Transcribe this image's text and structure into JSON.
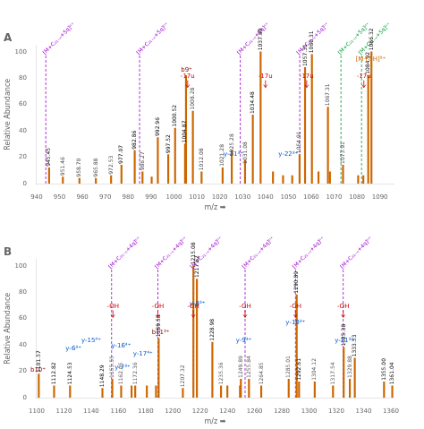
{
  "chart_data": [
    {
      "type": "bar",
      "title": "A",
      "x_label": "m/z ➡",
      "y_label": "Relative Abundance",
      "color": "#cc6600",
      "grid": false,
      "x": [
        945.45,
        951.46,
        958.7,
        965.88,
        972.53,
        977.07,
        982.86,
        986.27,
        990.27,
        992.96,
        997.52,
        1000.52,
        1004.87,
        1005.28,
        1008.28,
        1012.08,
        1021.28,
        1025.28,
        1031.08,
        1034.48,
        1037.89,
        1043.29,
        1047.69,
        1051.7,
        1054.91,
        1057.31,
        1060.31,
        1067.31,
        1063.18,
        1068.19,
        1073.91,
        1080.52,
        1082.78,
        1084.92,
        1086.32
      ],
      "values": [
        12,
        5,
        4,
        4,
        6,
        14,
        25,
        9,
        5,
        35,
        22,
        42,
        30,
        82,
        55,
        9,
        12,
        25,
        18,
        52,
        100,
        9,
        6,
        6,
        22,
        88,
        98,
        58,
        9,
        9,
        14,
        6,
        6,
        82,
        100
      ],
      "xlim": [
        940,
        1096
      ],
      "xticks": [
        940,
        950,
        960,
        970,
        980,
        990,
        1000,
        1010,
        1020,
        1030,
        1040,
        1050,
        1060,
        1070,
        1080,
        1090
      ],
      "ylim": [
        0,
        105
      ],
      "yticks": [
        0,
        20,
        40,
        60,
        80,
        100
      ],
      "peak_labels": [
        {
          "text": "945.45",
          "x": 945.45,
          "y": 13,
          "color": "#000000"
        },
        {
          "text": "977.07",
          "x": 977.07,
          "y": 15,
          "color": "#000000"
        },
        {
          "text": "982.86",
          "x": 982.86,
          "y": 26,
          "color": "#000000"
        },
        {
          "text": "992.96",
          "x": 992.96,
          "y": 36,
          "color": "#000000"
        },
        {
          "text": "997.52",
          "x": 997.52,
          "y": 23,
          "color": "#000000"
        },
        {
          "text": "1000.52",
          "x": 1000.52,
          "y": 43,
          "color": "#000000"
        },
        {
          "text": "1004.87",
          "x": 1004.87,
          "y": 31,
          "color": "#000000"
        },
        {
          "text": "1034.48",
          "x": 1034.48,
          "y": 53,
          "color": "#000000"
        },
        {
          "text": "1037.89",
          "x": 1037.89,
          "y": 101,
          "color": "#000000"
        },
        {
          "text": "1057.31",
          "x": 1057.31,
          "y": 89,
          "color": "#000000"
        },
        {
          "text": "1060.31",
          "x": 1060.31,
          "y": 99,
          "color": "#000000"
        },
        {
          "text": "1084.92",
          "x": 1084.92,
          "y": 83,
          "color": "#000000"
        },
        {
          "text": "1086.32",
          "x": 1086.32,
          "y": 101,
          "color": "#000000"
        },
        {
          "text": "951.46",
          "x": 951.46,
          "y": 6,
          "color": "#444444"
        },
        {
          "text": "958.70",
          "x": 958.7,
          "y": 5,
          "color": "#444444"
        },
        {
          "text": "965.88",
          "x": 965.88,
          "y": 5,
          "color": "#444444"
        },
        {
          "text": "972.53",
          "x": 972.53,
          "y": 7,
          "color": "#444444"
        },
        {
          "text": "986.27",
          "x": 986.27,
          "y": 10,
          "color": "#444444"
        },
        {
          "text": "1025.28",
          "x": 1025.28,
          "y": 21,
          "color": "#444444"
        },
        {
          "text": "1031.08",
          "x": 1031.08,
          "y": 15,
          "color": "#444444"
        },
        {
          "text": "1021.28",
          "x": 1021.28,
          "y": 13,
          "color": "#444444"
        },
        {
          "text": "1012.08",
          "x": 1012.08,
          "y": 10,
          "color": "#444444"
        },
        {
          "text": "1008.28",
          "x": 1008.28,
          "y": 56,
          "color": "#444444"
        },
        {
          "text": "1054.91",
          "x": 1054.91,
          "y": 23,
          "color": "#444444"
        },
        {
          "text": "1067.31",
          "x": 1067.31,
          "y": 59,
          "color": "#444444"
        },
        {
          "text": "1073.91",
          "x": 1073.91,
          "y": 15,
          "color": "#444444"
        }
      ],
      "markers": [
        {
          "text": "[M+C₂₁₋ₙ+5q]ⁿ⁺",
          "x": 944,
          "y": 97,
          "color": "#9900cc"
        },
        {
          "text": "[M+C₂₁₋ₙ+5q]ⁿ⁺",
          "x": 985,
          "y": 97,
          "color": "#9900cc"
        },
        {
          "text": "[M+C₂₁₋ₙ+5q]ⁿ⁺",
          "x": 1029,
          "y": 97,
          "color": "#9900cc"
        },
        {
          "text": "[M+C₂₁₋ₙ+5q]ⁿ⁺",
          "x": 1055,
          "y": 97,
          "color": "#9900cc"
        },
        {
          "text": "[M+C₂₁₋ₙ+5q]ⁿ⁺",
          "x": 1073,
          "y": 97,
          "color": "#009933"
        },
        {
          "text": "[M+C₂₁₋ₙ+5q]ⁿ⁺",
          "x": 1082,
          "y": 97,
          "color": "#009933"
        }
      ],
      "ion_labels": [
        {
          "text": "b9⁺",
          "x": 1005.5,
          "y": 85,
          "color": "#880000"
        },
        {
          "text": "[M+5H]⁵⁺",
          "x": 1086,
          "y": 93,
          "color": "#cc6600"
        },
        {
          "text": "y-21³⁺",
          "x": 1026,
          "y": 21,
          "color": "#0055cc"
        },
        {
          "text": "y-22³⁺",
          "x": 1050,
          "y": 21,
          "color": "#0055cc"
        }
      ],
      "loss_labels": [
        {
          "text": "-17u",
          "x": 1006,
          "y": 79,
          "color": "#cc0000"
        },
        {
          "text": "-17u",
          "x": 1040,
          "y": 79,
          "color": "#cc0000"
        },
        {
          "text": "-17u",
          "x": 1058,
          "y": 79,
          "color": "#cc0000"
        },
        {
          "text": "-17u",
          "x": 1083,
          "y": 79,
          "color": "#cc0000"
        }
      ]
    },
    {
      "type": "bar",
      "title": "B",
      "x_label": "m/z ➡",
      "y_label": "Relative Abundance",
      "color": "#cc6600",
      "grid": false,
      "x": [
        1101.57,
        1112.82,
        1124.53,
        1148.29,
        1155.55,
        1162.05,
        1169.69,
        1172.36,
        1180.89,
        1187.62,
        1189.58,
        1207.32,
        1215.08,
        1217.62,
        1228.98,
        1235.36,
        1240.0,
        1249.26,
        1249.89,
        1255.84,
        1264.85,
        1285.01,
        1290.89,
        1292.61,
        1304.12,
        1317.54,
        1325.38,
        1329.88,
        1333.53,
        1355.0,
        1361.04
      ],
      "values": [
        18,
        9,
        9,
        7,
        14,
        9,
        9,
        9,
        9,
        9,
        45,
        7,
        100,
        90,
        42,
        9,
        9,
        9,
        14,
        14,
        9,
        14,
        78,
        12,
        12,
        9,
        38,
        14,
        30,
        12,
        9
      ],
      "xlim": [
        1100,
        1362
      ],
      "xticks": [
        1100,
        1120,
        1140,
        1160,
        1180,
        1200,
        1220,
        1240,
        1260,
        1280,
        1300,
        1320,
        1340,
        1360
      ],
      "ylim": [
        0,
        105
      ],
      "yticks": [
        0,
        20,
        40,
        60,
        80,
        100
      ],
      "peak_labels": [
        {
          "text": "1101.57",
          "x": 1101.57,
          "y": 19,
          "color": "#000000"
        },
        {
          "text": "1112.82",
          "x": 1112.82,
          "y": 10,
          "color": "#000000"
        },
        {
          "text": "1124.53",
          "x": 1124.53,
          "y": 10,
          "color": "#000000"
        },
        {
          "text": "1148.29",
          "x": 1148.29,
          "y": 8,
          "color": "#000000"
        },
        {
          "text": "1189.58",
          "x": 1189.58,
          "y": 46,
          "color": "#000000"
        },
        {
          "text": "1215.08",
          "x": 1215.08,
          "y": 101,
          "color": "#000000"
        },
        {
          "text": "1217.62",
          "x": 1217.62,
          "y": 91,
          "color": "#000000"
        },
        {
          "text": "1228.98",
          "x": 1228.98,
          "y": 43,
          "color": "#000000"
        },
        {
          "text": "1290.89",
          "x": 1290.89,
          "y": 79,
          "color": "#000000"
        },
        {
          "text": "1292.61",
          "x": 1292.61,
          "y": 13,
          "color": "#000000"
        },
        {
          "text": "1325.38",
          "x": 1325.38,
          "y": 39,
          "color": "#000000"
        },
        {
          "text": "1333.53",
          "x": 1333.53,
          "y": 31,
          "color": "#000000"
        },
        {
          "text": "1355.00",
          "x": 1355.0,
          "y": 13,
          "color": "#000000"
        },
        {
          "text": "1361.04",
          "x": 1361.04,
          "y": 10,
          "color": "#000000"
        },
        {
          "text": "1155.55",
          "x": 1155.55,
          "y": 15,
          "color": "#555555"
        },
        {
          "text": "1162.05",
          "x": 1162.05,
          "y": 10,
          "color": "#555555"
        },
        {
          "text": "1172.36",
          "x": 1172.36,
          "y": 10,
          "color": "#555555"
        },
        {
          "text": "1207.32",
          "x": 1207.32,
          "y": 8,
          "color": "#555555"
        },
        {
          "text": "1235.36",
          "x": 1235.36,
          "y": 10,
          "color": "#555555"
        },
        {
          "text": "1249.89",
          "x": 1249.89,
          "y": 15,
          "color": "#555555"
        },
        {
          "text": "1255.84",
          "x": 1255.84,
          "y": 15,
          "color": "#555555"
        },
        {
          "text": "1264.85",
          "x": 1264.85,
          "y": 10,
          "color": "#555555"
        },
        {
          "text": "1285.01",
          "x": 1285.01,
          "y": 15,
          "color": "#555555"
        },
        {
          "text": "1304.12",
          "x": 1304.12,
          "y": 13,
          "color": "#555555"
        },
        {
          "text": "1317.54",
          "x": 1317.54,
          "y": 10,
          "color": "#555555"
        },
        {
          "text": "1329.88",
          "x": 1329.88,
          "y": 15,
          "color": "#555555"
        }
      ],
      "markers": [
        {
          "text": "[M+C₂₁₋ₙ+4q]ⁿ⁺",
          "x": 1155,
          "y": 97,
          "color": "#9900cc"
        },
        {
          "text": "[M+C₂₁₋ₙ+4q]ⁿ⁺",
          "x": 1189,
          "y": 97,
          "color": "#9900cc"
        },
        {
          "text": "[M+C₂₁₋ₙ+4q]ⁿ⁺",
          "x": 1215,
          "y": 97,
          "color": "#9900cc"
        },
        {
          "text": "[M+C₂₁₋ₙ+4q]ⁿ⁺",
          "x": 1253,
          "y": 97,
          "color": "#9900cc"
        },
        {
          "text": "[M+C₂₁₋ₙ+4q]ⁿ⁺",
          "x": 1290,
          "y": 97,
          "color": "#9900cc"
        },
        {
          "text": "[M+C₂₁₋ₙ+4q]ⁿ⁺",
          "x": 1325,
          "y": 97,
          "color": "#9900cc"
        }
      ],
      "ion_labels": [
        {
          "text": "b10⁺",
          "x": 1101,
          "y": 20,
          "color": "#880000"
        },
        {
          "text": "y-15⁴⁺",
          "x": 1140,
          "y": 42,
          "color": "#0055cc"
        },
        {
          "text": "y-16⁴⁺",
          "x": 1162,
          "y": 38,
          "color": "#0055cc"
        },
        {
          "text": "y-17⁴⁺",
          "x": 1178,
          "y": 32,
          "color": "#0055cc"
        },
        {
          "text": "b11³⁺",
          "x": 1191,
          "y": 48,
          "color": "#880000"
        },
        {
          "text": "y-8³⁺",
          "x": 1218,
          "y": 70,
          "color": "#0055cc"
        },
        {
          "text": "y-9³⁺",
          "x": 1252,
          "y": 42,
          "color": "#0055cc"
        },
        {
          "text": "y-10³⁺",
          "x": 1290,
          "y": 56,
          "color": "#0055cc"
        },
        {
          "text": "y-11³⁺",
          "x": 1326,
          "y": 42,
          "color": "#0055cc"
        },
        {
          "text": "y-6³⁺",
          "x": 1127,
          "y": 36,
          "color": "#0055cc"
        },
        {
          "text": "y-7³⁺",
          "x": 1163,
          "y": 22,
          "color": "#0055cc"
        }
      ],
      "loss_labels": [
        {
          "text": "-OH",
          "x": 1156,
          "y": 67,
          "color": "#cc0000"
        },
        {
          "text": "-OH",
          "x": 1189,
          "y": 67,
          "color": "#cc0000"
        },
        {
          "text": "-OH",
          "x": 1215,
          "y": 67,
          "color": "#cc0000"
        },
        {
          "text": "-OH",
          "x": 1253,
          "y": 67,
          "color": "#cc0000"
        },
        {
          "text": "-OH",
          "x": 1290,
          "y": 67,
          "color": "#cc0000"
        },
        {
          "text": "-OH",
          "x": 1325,
          "y": 67,
          "color": "#cc0000"
        }
      ]
    }
  ]
}
